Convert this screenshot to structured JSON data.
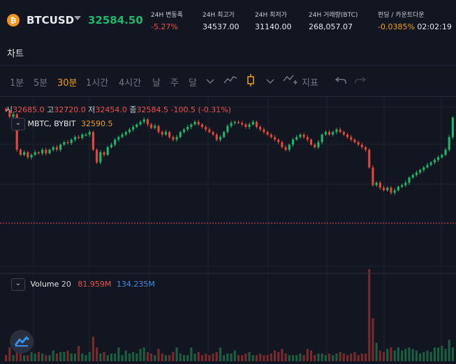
{
  "header": {
    "symbol": "BTCUSD",
    "last_price": "32584.50",
    "stats": [
      {
        "label": "24H 변동폭",
        "value": "-5.27%",
        "tone": "neg"
      },
      {
        "label": "24H 최고가",
        "value": "34537.00",
        "tone": "plain"
      },
      {
        "label": "24H 최저가",
        "value": "31140.00",
        "tone": "plain"
      },
      {
        "label": "24H 거래량(BTC)",
        "value": "268,057.07",
        "tone": "plain"
      },
      {
        "label": "펀딩 / 카운트다운",
        "value": "-0.0385%",
        "tone": "ora",
        "extra": "02:02:19"
      }
    ]
  },
  "section": {
    "title": "차트"
  },
  "toolbar": {
    "intervals": [
      "1분",
      "5분",
      "30분",
      "1시간",
      "4시간",
      "날",
      "주",
      "달"
    ],
    "active_interval": "30분",
    "indicators_label": "지표"
  },
  "chart": {
    "ohlc": {
      "open_label": "시",
      "open": "32685.0",
      "high_label": "고",
      "high": "32720.0",
      "low_label": "저",
      "low": "32454.0",
      "close_label": "종",
      "close": "32584.5",
      "change": "-100.5 (-0.31%)"
    },
    "series_label": "BYBIT",
    "series_prefix": "MBTC,",
    "series_value": "32590.5",
    "volume": {
      "label": "Volume",
      "period": "20",
      "value1": "81.959M",
      "value2": "134.235M"
    },
    "colors": {
      "up": "#1fb76a",
      "down": "#e2473c",
      "volume_down": "#7a2a2d",
      "volume_up": "#1b5e40"
    }
  },
  "chart_data": {
    "type": "candlestick",
    "closes": [
      32720,
      32600,
      32650,
      31950,
      31850,
      31900,
      31800,
      31850,
      31900,
      31880,
      31950,
      31880,
      31950,
      32000,
      31950,
      32050,
      32100,
      32080,
      32150,
      32200,
      32180,
      32250,
      32250,
      32300,
      31950,
      31700,
      31900,
      31850,
      32000,
      32050,
      32150,
      32200,
      32250,
      32300,
      32350,
      32400,
      32450,
      32500,
      32550,
      32450,
      32380,
      32420,
      32300,
      32250,
      32300,
      32200,
      32150,
      32200,
      32300,
      32350,
      32400,
      32450,
      32500,
      32450,
      32400,
      32350,
      32300,
      32250,
      32150,
      32200,
      32300,
      32420,
      32480,
      32500,
      32480,
      32450,
      32400,
      32450,
      32500,
      32400,
      32350,
      32300,
      32250,
      32200,
      32150,
      32100,
      32000,
      31950,
      32050,
      32150,
      32200,
      32250,
      32200,
      32150,
      32050,
      32000,
      32100,
      32250,
      32300,
      32250,
      32300,
      32350,
      32300,
      32250,
      32200,
      32150,
      32100,
      32050,
      32000,
      31950,
      31600,
      31250,
      31300,
      31200,
      31150,
      31200,
      31100,
      31150,
      31220,
      31250,
      31300,
      31400,
      31450,
      31500,
      31550,
      31600,
      31650,
      31700,
      31750,
      31800,
      31850,
      31950,
      32200,
      32584
    ],
    "volumes": [
      4,
      9,
      4,
      7,
      7,
      4,
      4,
      6,
      5,
      6,
      5,
      4,
      4,
      7,
      5,
      6,
      6,
      7,
      5,
      5,
      10,
      5,
      4,
      6,
      16,
      9,
      5,
      6,
      4,
      5,
      5,
      9,
      4,
      7,
      5,
      6,
      5,
      8,
      9,
      6,
      5,
      4,
      8,
      5,
      4,
      4,
      6,
      9,
      5,
      4,
      4,
      9,
      5,
      6,
      4,
      5,
      4,
      5,
      6,
      9,
      4,
      5,
      5,
      7,
      4,
      4,
      5,
      6,
      4,
      4,
      5,
      4,
      4,
      5,
      7,
      6,
      8,
      5,
      4,
      4,
      4,
      5,
      4,
      8,
      7,
      4,
      5,
      5,
      4,
      5,
      4,
      5,
      6,
      5,
      4,
      5,
      6,
      4,
      5,
      5,
      60,
      28,
      12,
      7,
      6,
      8,
      9,
      7,
      9,
      7,
      8,
      9,
      8,
      7,
      5,
      6,
      7,
      6,
      9,
      9,
      10,
      8,
      14,
      9
    ],
    "price_range": [
      30900,
      32800
    ]
  }
}
